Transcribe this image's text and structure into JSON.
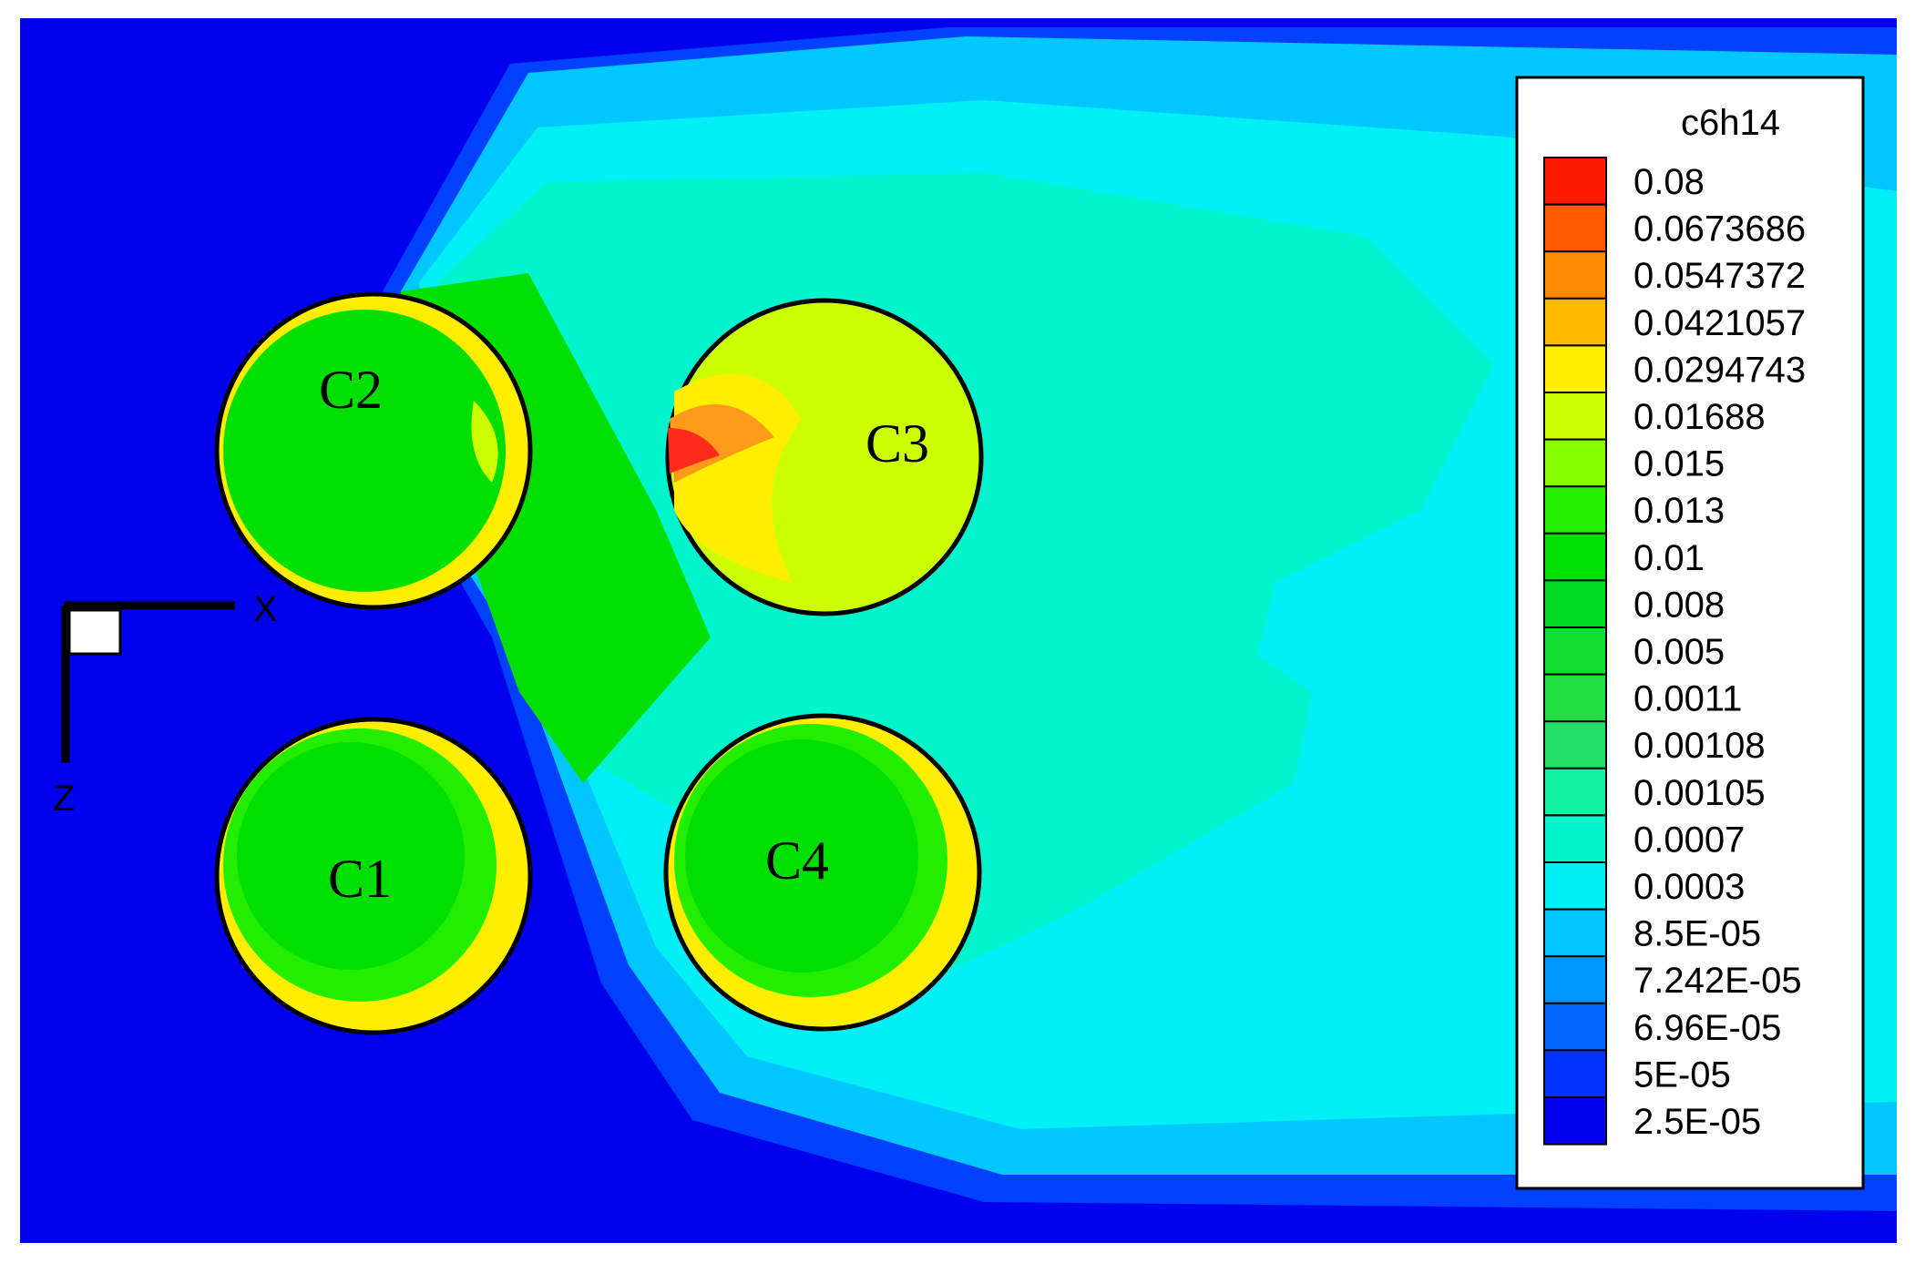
{
  "figure": {
    "variable": "c6h14",
    "axes": {
      "x_label": "X",
      "z_label": "Z"
    },
    "tanks": [
      {
        "id": "C1",
        "label": "C1"
      },
      {
        "id": "C2",
        "label": "C2"
      },
      {
        "id": "C3",
        "label": "C3"
      },
      {
        "id": "C4",
        "label": "C4"
      }
    ]
  },
  "legend": {
    "title": "c6h14",
    "levels": [
      {
        "label": "0.08",
        "color": "#ff1a00"
      },
      {
        "label": "0.0673686",
        "color": "#ff5a00"
      },
      {
        "label": "0.0547372",
        "color": "#ff8c00"
      },
      {
        "label": "0.0421057",
        "color": "#ffbb00"
      },
      {
        "label": "0.0294743",
        "color": "#ffee00"
      },
      {
        "label": "0.01688",
        "color": "#ccff00"
      },
      {
        "label": "0.015",
        "color": "#88ff00"
      },
      {
        "label": "0.013",
        "color": "#22ee00"
      },
      {
        "label": "0.01",
        "color": "#00e000"
      },
      {
        "label": "0.008",
        "color": "#00dd22"
      },
      {
        "label": "0.005",
        "color": "#11e033"
      },
      {
        "label": "0.0011",
        "color": "#22e044"
      },
      {
        "label": "0.00108",
        "color": "#22e066"
      },
      {
        "label": "0.00105",
        "color": "#11f0a0"
      },
      {
        "label": "0.0007",
        "color": "#00f5cc"
      },
      {
        "label": "0.0003",
        "color": "#00f0f5"
      },
      {
        "label": "8.5E-05",
        "color": "#00c8ff"
      },
      {
        "label": "7.242E-05",
        "color": "#0096ff"
      },
      {
        "label": "6.96E-05",
        "color": "#0066ff"
      },
      {
        "label": "5E-05",
        "color": "#0033ff"
      },
      {
        "label": "2.5E-05",
        "color": "#0000ee"
      }
    ]
  },
  "colors": {
    "background": "#0000ee",
    "band_light_blue": "#00c8ff",
    "band_cyan": "#00f0f5",
    "band_aqua": "#00f5cc",
    "band_green": "#00e000",
    "tank_yellow": "#ffee00",
    "tank_lime": "#ccff00",
    "tank_red": "#ff2a1a",
    "tank_orange": "#ff9a1a"
  }
}
